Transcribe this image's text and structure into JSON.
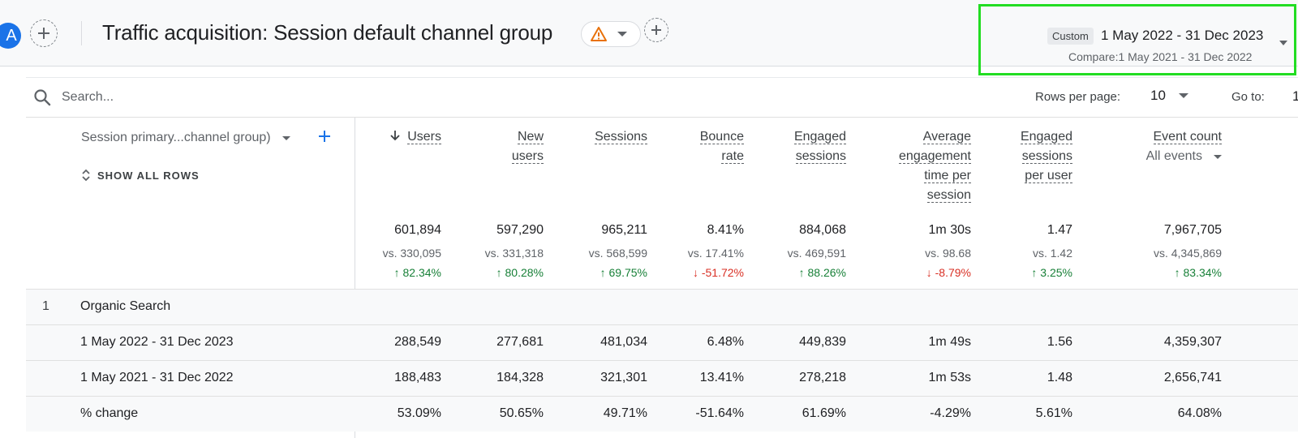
{
  "header": {
    "avatar_letter": "A",
    "title": "Traffic acquisition: Session default channel group",
    "date_range": {
      "chip": "Custom",
      "main": "1 May 2022 - 31 Dec 2023",
      "compare": "Compare:1 May 2021 - 31 Dec 2022"
    }
  },
  "toolbar": {
    "search_placeholder": "Search...",
    "rows_per_page_label": "Rows per page:",
    "rows_per_page_value": "10",
    "goto_label": "Go to:",
    "goto_value": "1"
  },
  "table": {
    "dimension_header": "Session primary...channel group)",
    "show_all_rows": "SHOW ALL ROWS",
    "columns": [
      {
        "lines": [
          "Users"
        ],
        "sorted": true,
        "total": "601,894",
        "vs": "vs. 330,095",
        "change": "82.34%",
        "direction": "up"
      },
      {
        "lines": [
          "New",
          "users"
        ],
        "total": "597,290",
        "vs": "vs. 331,318",
        "change": "80.28%",
        "direction": "up"
      },
      {
        "lines": [
          "Sessions"
        ],
        "total": "965,211",
        "vs": "vs. 568,599",
        "change": "69.75%",
        "direction": "up"
      },
      {
        "lines": [
          "Bounce",
          "rate"
        ],
        "total": "8.41%",
        "vs": "vs. 17.41%",
        "change": "-51.72%",
        "direction": "down"
      },
      {
        "lines": [
          "Engaged",
          "sessions"
        ],
        "total": "884,068",
        "vs": "vs. 469,591",
        "change": "88.26%",
        "direction": "up"
      },
      {
        "lines": [
          "Average",
          "engagement",
          "time per",
          "session"
        ],
        "total": "1m 30s",
        "vs": "vs. 98.68",
        "change": "-8.79%",
        "direction": "down"
      },
      {
        "lines": [
          "Engaged",
          "sessions",
          "per user"
        ],
        "total": "1.47",
        "vs": "vs. 1.42",
        "change": "3.25%",
        "direction": "up"
      },
      {
        "lines": [
          "Event count"
        ],
        "sub": "All events",
        "total": "7,967,705",
        "vs": "vs. 4,345,869",
        "change": "83.34%",
        "direction": "up"
      }
    ],
    "rows": [
      {
        "index": "1",
        "label": "Organic Search",
        "values": [
          "",
          "",
          "",
          "",
          "",
          "",
          "",
          ""
        ]
      },
      {
        "index": "",
        "label": "1 May 2022 - 31 Dec 2023",
        "values": [
          "288,549",
          "277,681",
          "481,034",
          "6.48%",
          "449,839",
          "1m 49s",
          "1.56",
          "4,359,307"
        ]
      },
      {
        "index": "",
        "label": "1 May 2021 - 31 Dec 2022",
        "values": [
          "188,483",
          "184,328",
          "321,301",
          "13.41%",
          "278,218",
          "1m 53s",
          "1.48",
          "2,656,741"
        ]
      },
      {
        "index": "",
        "label": "% change",
        "values": [
          "53.09%",
          "50.65%",
          "49.71%",
          "-51.64%",
          "61.69%",
          "-4.29%",
          "5.61%",
          "64.08%"
        ]
      }
    ]
  },
  "colors": {
    "accent": "#1a73e8",
    "highlight": "#22dd22",
    "up": "#188038",
    "down": "#d93025"
  }
}
